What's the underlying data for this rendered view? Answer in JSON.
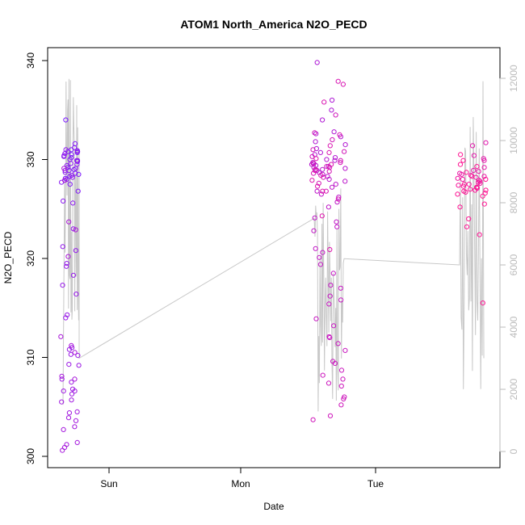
{
  "chart_data": {
    "type": "scatter",
    "title": "ATOM1 North_America N2O_PECD",
    "xlabel": "Date",
    "ylabel": "N2O_PECD",
    "x_ticks": [
      "Sun",
      "Mon",
      "Tue"
    ],
    "y_ticks": [
      300,
      310,
      320,
      330,
      340
    ],
    "y_range": [
      300,
      340
    ],
    "y2_ticks": [
      0,
      2000,
      4000,
      6000,
      8000,
      10000,
      12000
    ],
    "y2_range": [
      0,
      12000
    ],
    "colors": {
      "early": "#7a19ff",
      "late": "#ff1493",
      "altitude_line": "#c8c8c8",
      "axis": "#000000",
      "axis2": "#bbbbbb"
    },
    "series": [
      {
        "role": "scatter",
        "values_by_flight": [
          [
            334.0,
            331.0,
            330.5,
            330.7,
            329.0,
            328.5,
            328.1,
            327.9,
            328.3,
            329.2,
            328.6,
            327.5,
            326.8,
            331.6,
            330.0,
            329.8,
            330.8,
            330.2,
            329.5,
            328.9,
            328.0,
            331.2,
            330.9,
            329.9,
            330.3,
            328.7,
            329.4,
            327.7,
            325.8,
            325.6,
            329.1,
            330.6,
            329.6,
            331.0,
            330.4,
            328.4,
            328.2,
            330.8,
            329.9,
            328.9,
            323.0,
            321.2,
            320.8,
            319.5,
            319.2,
            318.3,
            317.3,
            316.4,
            314.3,
            314.0,
            311.0,
            310.8,
            310.3,
            310.2,
            309.3,
            309.2,
            307.8,
            307.5,
            306.8,
            306.6,
            306.3,
            306.6,
            305.7,
            305.5,
            304.5,
            304.4,
            303.9,
            303.6,
            303.0,
            302.7,
            301.4,
            301.2,
            300.6,
            300.9,
            308.1,
            307.8,
            310.5,
            311.2,
            312.1,
            320.2,
            322.9,
            323.7,
            329.1,
            327.9
          ],
          [
            339.8,
            336.0,
            335.0,
            334.0,
            332.8,
            332.6,
            332.3,
            331.8,
            331.5,
            331.1,
            330.7,
            330.5,
            330.2,
            330.0,
            329.9,
            329.7,
            329.6,
            329.5,
            329.4,
            329.3,
            329.2,
            329.1,
            329.0,
            328.9,
            328.7,
            328.5,
            328.3,
            328.0,
            327.8,
            327.5,
            327.2,
            326.8,
            326.5,
            326.2,
            325.7,
            325.2,
            324.1,
            323.7,
            323.2,
            322.8,
            321.0,
            320.6,
            320.1,
            319.4,
            318.5,
            317.3,
            317.0,
            316.2,
            315.8,
            315.4,
            313.9,
            313.2,
            312.1,
            312.0,
            311.4,
            310.7,
            309.6,
            309.4,
            308.7,
            308.2,
            307.8,
            307.4,
            307.1,
            306.0,
            305.8,
            305.2,
            304.1,
            303.7,
            334.5,
            332.7,
            332.0,
            331.0,
            330.8,
            330.3,
            329.9,
            329.7,
            329.6,
            329.3,
            329.0,
            328.8,
            328.6,
            328.2,
            327.6,
            326.8,
            326.0,
            337.9,
            337.6,
            335.8,
            332.5,
            331.4,
            330.7,
            330.1,
            329.5,
            329.2,
            328.9,
            328.4,
            327.9,
            327.3,
            326.8,
            324.3,
            320.9
          ],
          [
            331.7,
            331.4,
            330.4,
            330.1,
            329.9,
            329.2,
            328.9,
            328.8,
            328.6,
            328.5,
            328.4,
            328.3,
            328.2,
            328.1,
            328.0,
            327.9,
            327.8,
            327.7,
            327.6,
            327.5,
            327.4,
            327.3,
            327.2,
            327.1,
            327.0,
            326.9,
            326.8,
            326.7,
            326.5,
            326.3,
            325.5,
            325.2,
            324.0,
            323.2,
            322.4,
            315.5,
            330.5,
            329.9,
            329.5,
            329.3,
            328.7,
            328.3,
            328.0,
            327.5,
            327.2,
            326.9,
            326.6
          ]
        ]
      },
      {
        "role": "altitude_line",
        "axis": "right"
      }
    ]
  }
}
